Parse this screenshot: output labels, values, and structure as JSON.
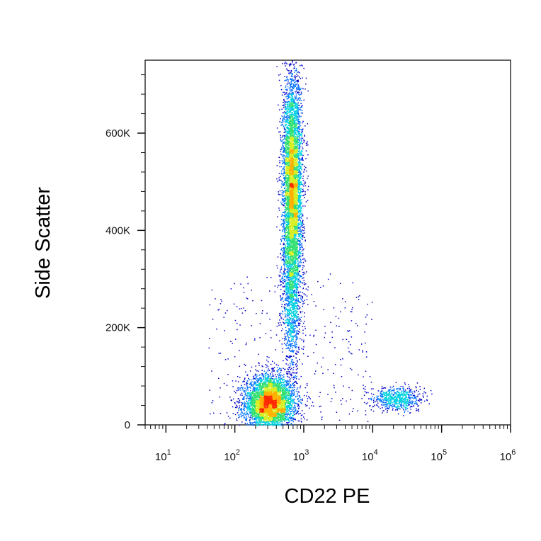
{
  "chart_data": {
    "type": "scatter",
    "style": "flow-cytometry density dot plot",
    "xlabel": "CD22 PE",
    "ylabel": "Side Scatter",
    "x_scale": "log",
    "xlim": [
      5,
      1000000
    ],
    "ylim": [
      0,
      750000
    ],
    "x_ticks": [
      {
        "value": 10,
        "base": "10",
        "exp": "1"
      },
      {
        "value": 100,
        "base": "10",
        "exp": "2"
      },
      {
        "value": 1000,
        "base": "10",
        "exp": "3"
      },
      {
        "value": 10000,
        "base": "10",
        "exp": "4"
      },
      {
        "value": 100000,
        "base": "10",
        "exp": "5"
      },
      {
        "value": 1000000,
        "base": "10",
        "exp": "6"
      }
    ],
    "y_ticks": [
      {
        "value": 0,
        "label": "0"
      },
      {
        "value": 200000,
        "label": "200K"
      },
      {
        "value": 400000,
        "label": "400K"
      },
      {
        "value": 600000,
        "label": "600K"
      }
    ],
    "colormap": [
      "#0000c8",
      "#0070ff",
      "#00d0e0",
      "#30e070",
      "#d8ee20",
      "#ffb000",
      "#ff2a00"
    ],
    "populations": [
      {
        "name": "",
        "log10_x_center": 2.5,
        "y_center": 45000,
        "log10_x_sd": 0.18,
        "y_sd": 28000,
        "count": 4500
      },
      {
        "name": "",
        "log10_x_center": 2.83,
        "y_center": 500000,
        "log10_x_sd": 0.07,
        "y_sd": 110000,
        "count": 5200
      },
      {
        "name": "",
        "log10_x_center": 2.82,
        "y_center": 280000,
        "log10_x_sd": 0.07,
        "y_sd": 90000,
        "count": 1400
      },
      {
        "name": "",
        "log10_x_center": 4.35,
        "y_center": 55000,
        "log10_x_sd": 0.18,
        "y_sd": 12000,
        "count": 700
      }
    ]
  }
}
